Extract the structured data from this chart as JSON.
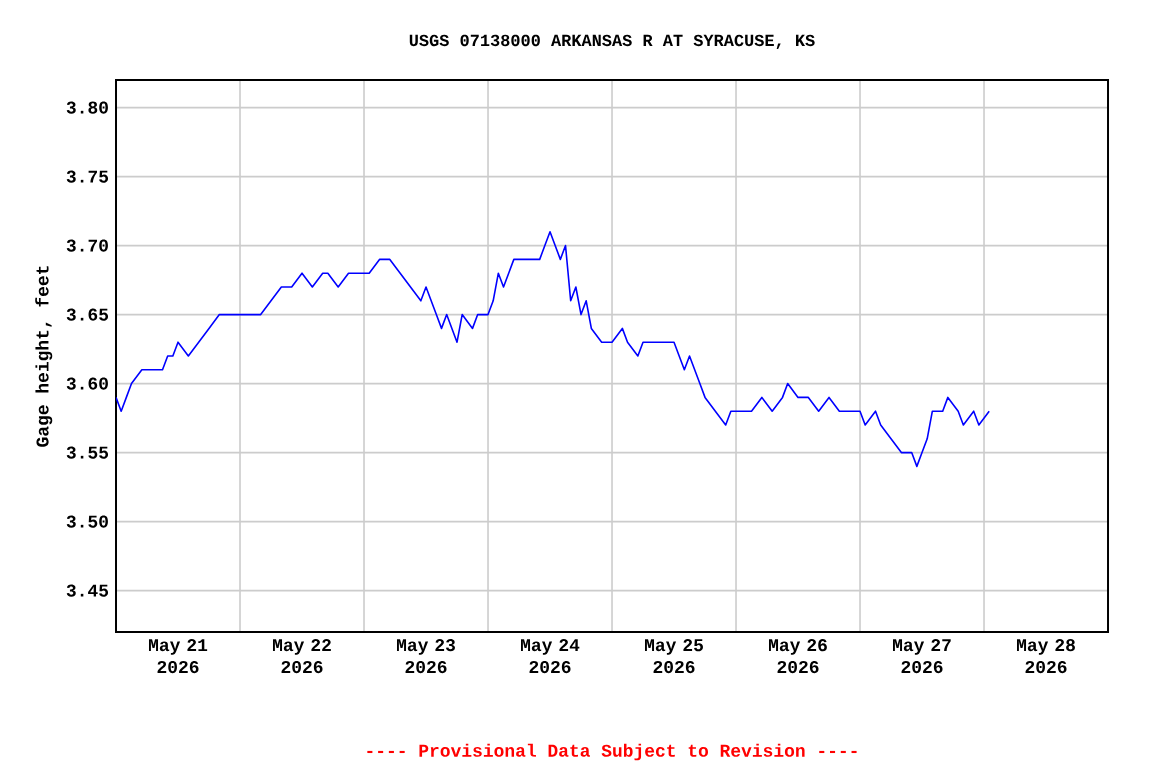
{
  "chart_data": {
    "type": "line",
    "title": "USGS 07138000 ARKANSAS R AT SYRACUSE, KS",
    "ylabel": "Gage height, feet",
    "annotations": [
      "---- Provisional Data Subject to Revision ----"
    ],
    "x": [
      "2026-05-21T00:00",
      "2026-05-21T01:00",
      "2026-05-21T02:00",
      "2026-05-21T03:00",
      "2026-05-21T05:00",
      "2026-05-21T07:00",
      "2026-05-21T09:00",
      "2026-05-21T10:00",
      "2026-05-21T11:00",
      "2026-05-21T12:00",
      "2026-05-21T14:00",
      "2026-05-21T16:00",
      "2026-05-21T18:00",
      "2026-05-21T20:00",
      "2026-05-21T22:00",
      "2026-05-22T00:00",
      "2026-05-22T04:00",
      "2026-05-22T06:00",
      "2026-05-22T08:00",
      "2026-05-22T10:00",
      "2026-05-22T12:00",
      "2026-05-22T14:00",
      "2026-05-22T16:00",
      "2026-05-22T17:00",
      "2026-05-22T19:00",
      "2026-05-22T21:00",
      "2026-05-22T23:00",
      "2026-05-23T01:00",
      "2026-05-23T03:00",
      "2026-05-23T05:00",
      "2026-05-23T07:00",
      "2026-05-23T09:00",
      "2026-05-23T11:00",
      "2026-05-23T12:00",
      "2026-05-23T14:00",
      "2026-05-23T15:00",
      "2026-05-23T16:00",
      "2026-05-23T18:00",
      "2026-05-23T19:00",
      "2026-05-23T21:00",
      "2026-05-23T22:00",
      "2026-05-24T00:00",
      "2026-05-24T01:00",
      "2026-05-24T02:00",
      "2026-05-24T03:00",
      "2026-05-24T05:00",
      "2026-05-24T06:00",
      "2026-05-24T08:00",
      "2026-05-24T10:00",
      "2026-05-24T11:00",
      "2026-05-24T12:00",
      "2026-05-24T14:00",
      "2026-05-24T15:00",
      "2026-05-24T16:00",
      "2026-05-24T17:00",
      "2026-05-24T18:00",
      "2026-05-24T19:00",
      "2026-05-24T20:00",
      "2026-05-24T22:00",
      "2026-05-25T00:00",
      "2026-05-25T02:00",
      "2026-05-25T03:00",
      "2026-05-25T05:00",
      "2026-05-25T06:00",
      "2026-05-25T09:00",
      "2026-05-25T12:00",
      "2026-05-25T13:00",
      "2026-05-25T14:00",
      "2026-05-25T15:00",
      "2026-05-25T17:00",
      "2026-05-25T18:00",
      "2026-05-25T20:00",
      "2026-05-25T22:00",
      "2026-05-25T23:00",
      "2026-05-26T01:00",
      "2026-05-26T03:00",
      "2026-05-26T05:00",
      "2026-05-26T07:00",
      "2026-05-26T09:00",
      "2026-05-26T10:00",
      "2026-05-26T12:00",
      "2026-05-26T14:00",
      "2026-05-26T16:00",
      "2026-05-26T18:00",
      "2026-05-26T20:00",
      "2026-05-26T22:00",
      "2026-05-27T00:00",
      "2026-05-27T01:00",
      "2026-05-27T03:00",
      "2026-05-27T04:00",
      "2026-05-27T06:00",
      "2026-05-27T08:00",
      "2026-05-27T10:00",
      "2026-05-27T11:00",
      "2026-05-27T12:00",
      "2026-05-27T13:00",
      "2026-05-27T14:00",
      "2026-05-27T16:00",
      "2026-05-27T17:00",
      "2026-05-27T19:00",
      "2026-05-27T20:00",
      "2026-05-27T22:00",
      "2026-05-27T23:00",
      "2026-05-28T01:00"
    ],
    "values": [
      3.59,
      3.58,
      3.59,
      3.6,
      3.61,
      3.61,
      3.61,
      3.62,
      3.62,
      3.63,
      3.62,
      3.63,
      3.64,
      3.65,
      3.65,
      3.65,
      3.65,
      3.66,
      3.67,
      3.67,
      3.68,
      3.67,
      3.68,
      3.68,
      3.67,
      3.68,
      3.68,
      3.68,
      3.69,
      3.69,
      3.68,
      3.67,
      3.66,
      3.67,
      3.65,
      3.64,
      3.65,
      3.63,
      3.65,
      3.64,
      3.65,
      3.65,
      3.66,
      3.68,
      3.67,
      3.69,
      3.69,
      3.69,
      3.69,
      3.7,
      3.71,
      3.69,
      3.7,
      3.66,
      3.67,
      3.65,
      3.66,
      3.64,
      3.63,
      3.63,
      3.64,
      3.63,
      3.62,
      3.63,
      3.63,
      3.63,
      3.62,
      3.61,
      3.62,
      3.6,
      3.59,
      3.58,
      3.57,
      3.58,
      3.58,
      3.58,
      3.59,
      3.58,
      3.59,
      3.6,
      3.59,
      3.59,
      3.58,
      3.59,
      3.58,
      3.58,
      3.58,
      3.57,
      3.58,
      3.57,
      3.56,
      3.55,
      3.55,
      3.54,
      3.55,
      3.56,
      3.58,
      3.58,
      3.59,
      3.58,
      3.57,
      3.58,
      3.57,
      3.58
    ],
    "color": "#0000ff",
    "marker": "none",
    "line_style": "solid",
    "grid": true,
    "xlim": [
      "2026-05-21",
      "2026-05-29"
    ],
    "xticks": [
      {
        "value": "2026-05-21T12:00",
        "label": "May 21 2026"
      },
      {
        "value": "2026-05-22T12:00",
        "label": "May 22 2026"
      },
      {
        "value": "2026-05-23T12:00",
        "label": "May 23 2026"
      },
      {
        "value": "2026-05-24T12:00",
        "label": "May 24 2026"
      },
      {
        "value": "2026-05-25T12:00",
        "label": "May 25 2026"
      },
      {
        "value": "2026-05-26T12:00",
        "label": "May 26 2026"
      },
      {
        "value": "2026-05-27T12:00",
        "label": "May 27 2026"
      },
      {
        "value": "2026-05-28T12:00",
        "label": "May 28 2026"
      },
      {
        "value": "2026-05-22",
        "label": null
      },
      {
        "value": "2026-05-23",
        "label": null
      },
      {
        "value": "2026-05-24",
        "label": null
      },
      {
        "value": "2026-05-25",
        "label": null
      },
      {
        "value": "2026-05-26",
        "label": null
      },
      {
        "value": "2026-05-27",
        "label": null
      },
      {
        "value": "2026-05-28",
        "label": null
      }
    ],
    "ylim": [
      3.42,
      3.82
    ],
    "yticks": [
      {
        "value": 3.45,
        "label": "3.45"
      },
      {
        "value": 3.5,
        "label": "3.50"
      },
      {
        "value": 3.55,
        "label": "3.55"
      },
      {
        "value": 3.6,
        "label": "3.60"
      },
      {
        "value": 3.65,
        "label": "3.65"
      },
      {
        "value": 3.7,
        "label": "3.70"
      },
      {
        "value": 3.75,
        "label": "3.75"
      },
      {
        "value": 3.8,
        "label": "3.80"
      }
    ]
  }
}
